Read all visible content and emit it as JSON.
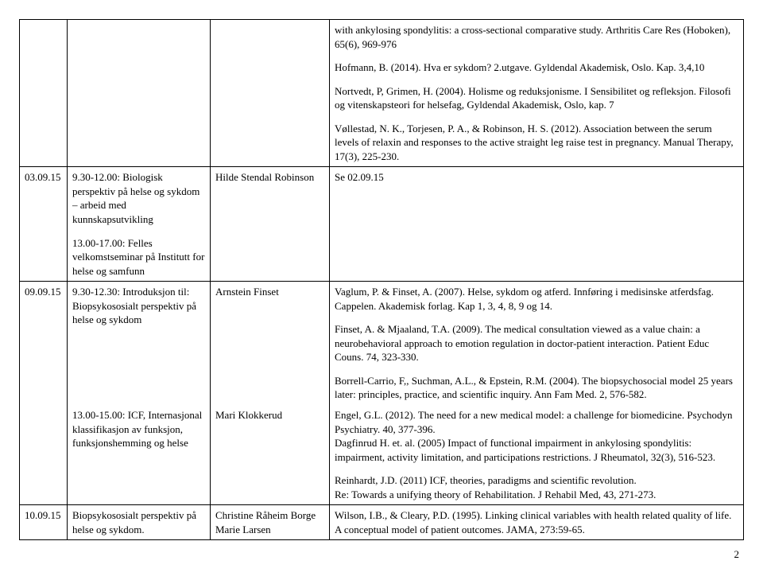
{
  "pageNumber": "2",
  "rows": [
    {
      "date": "",
      "topic": "",
      "teacher": "",
      "lit": [
        "with ankylosing spondylitis: a cross-sectional comparative study. Arthritis Care Res (Hoboken), 65(6), 969-976",
        "Hofmann, B. (2014). Hva er sykdom? 2.utgave. Gyldendal Akademisk, Oslo. Kap. 3,4,10",
        "Nortvedt, P, Grimen, H. (2004). Holisme og reduksjonisme. I Sensibilitet og refleksjon. Filosofi og vitenskapsteori for helsefag, Gyldendal Akademisk, Oslo, kap. 7",
        "Vøllestad, N. K., Torjesen, P. A., & Robinson, H. S. (2012). Association between the serum levels of relaxin and responses to the active straight leg raise test in pregnancy. Manual Therapy, 17(3), 225-230."
      ]
    },
    {
      "date": "03.09.15",
      "topicParas": [
        "9.30-12.00: Biologisk perspektiv på helse og sykdom – arbeid med kunnskapsutvikling",
        "13.00-17.00: Felles velkomstseminar på Institutt for helse og samfunn"
      ],
      "teacher": "Hilde Stendal Robinson",
      "lit": [
        "Se 02.09.15"
      ]
    },
    {
      "date": "09.09.15",
      "subrows": [
        {
          "topic": "9.30-12.30: Introduksjon til: Biopsykososialt perspektiv på helse og sykdom",
          "teacher": "Arnstein Finset",
          "lit": [
            "Vaglum, P. & Finset, A. (2007). Helse, sykdom og atferd. Innføring i medisinske atferdsfag. Cappelen. Akademisk forlag. Kap 1, 3, 4, 8, 9 og 14.",
            "Finset, A. & Mjaaland, T.A. (2009).  The medical consultation viewed as a value chain: a neurobehavioral approach to emotion regulation in doctor-patient interaction. Patient Educ Couns. 74, 323-330.",
            "Borrell-Carrio, F,, Suchman, A.L., & Epstein, R.M. (2004). The biopsychosocial model 25 years later: principles, practice, and scientific inquiry. Ann Fam Med. 2, 576-582."
          ]
        },
        {
          "topic": "13.00-15.00: ICF, Internasjonal klassifikasjon av funksjon, funksjonshemming og helse",
          "teacher": "Mari Klokkerud",
          "lit": [
            "Engel, G.L. (2012). The need for a new medical model: a challenge for biomedicine. Psychodyn Psychiatry. 40, 377-396.\nDagfinrud H. et. al. (2005) Impact of functional impairment in ankylosing spondylitis: impairment, activity limitation, and participations restrictions. J Rheumatol, 32(3), 516-523.",
            "Reinhardt, J.D. (2011) ICF, theories, paradigms and scientific revolution.\nRe: Towards a unifying theory of Rehabilitation. J Rehabil Med, 43, 271-273."
          ]
        }
      ]
    },
    {
      "date": "10.09.15",
      "topic": "Biopsykososialt perspektiv på helse og sykdom.",
      "teacher": "Christine Råheim Borge\nMarie Larsen",
      "lit": [
        "Wilson, I.B., & Cleary, P.D. (1995). Linking clinical variables with health related quality of life. A conceptual model of patient outcomes. JAMA, 273:59-65."
      ]
    }
  ]
}
